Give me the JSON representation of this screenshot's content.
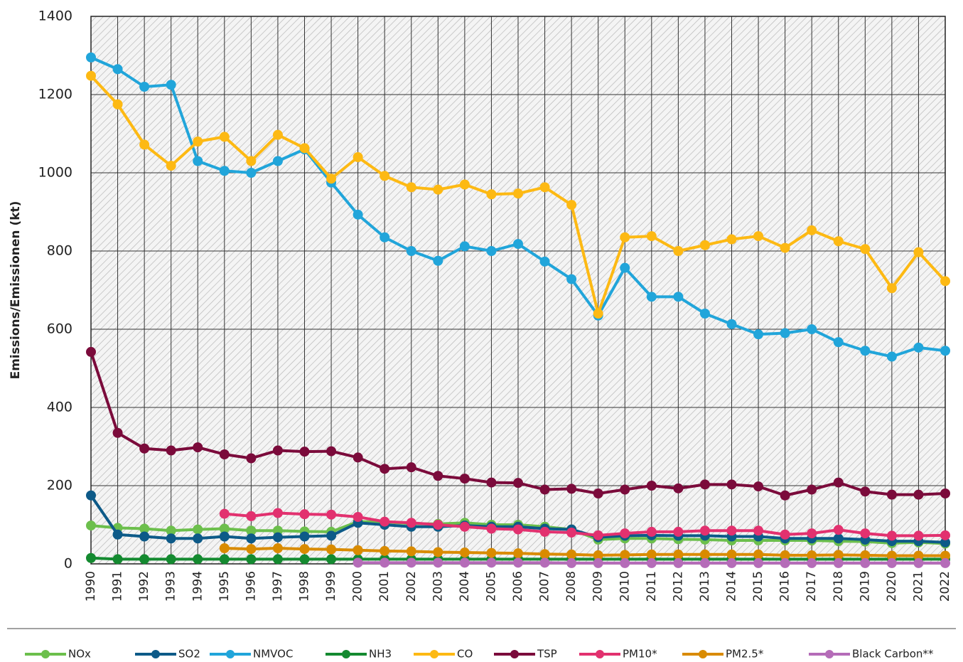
{
  "chart_data": {
    "type": "line",
    "y_label": "Emissions/Emissionen (kt)",
    "categories": [
      "1990",
      "1991",
      "1992",
      "1993",
      "1994",
      "1995",
      "1996",
      "1997",
      "1998",
      "1999",
      "2000",
      "2001",
      "2002",
      "2003",
      "2004",
      "2005",
      "2006",
      "2007",
      "2008",
      "2009",
      "2010",
      "2011",
      "2012",
      "2013",
      "2014",
      "2015",
      "2016",
      "2017",
      "2018",
      "2019",
      "2020",
      "2021",
      "2022"
    ],
    "ylim": [
      0,
      1400
    ],
    "yticks": [
      0,
      200,
      400,
      600,
      800,
      1000,
      1200,
      1400
    ],
    "grid": true,
    "legend": "bottom",
    "series": [
      {
        "name": "NOx",
        "color": "#6cbf4c",
        "values": [
          98,
          92,
          90,
          85,
          88,
          90,
          85,
          85,
          83,
          82,
          108,
          107,
          103,
          102,
          105,
          100,
          100,
          95,
          88,
          62,
          65,
          65,
          63,
          62,
          60,
          60,
          60,
          60,
          58,
          57,
          53,
          55,
          52
        ]
      },
      {
        "name": "SO2",
        "color": "#0d5a88",
        "values": [
          175,
          75,
          70,
          65,
          65,
          70,
          65,
          68,
          70,
          72,
          105,
          100,
          95,
          95,
          98,
          95,
          95,
          90,
          88,
          68,
          72,
          73,
          72,
          72,
          70,
          70,
          65,
          65,
          65,
          62,
          58,
          58,
          55
        ]
      },
      {
        "name": "NMVOC",
        "color": "#21a5da",
        "values": [
          1295,
          1265,
          1220,
          1225,
          1030,
          1005,
          1000,
          1030,
          1060,
          975,
          893,
          835,
          800,
          775,
          812,
          800,
          818,
          773,
          728,
          635,
          757,
          683,
          683,
          640,
          613,
          587,
          590,
          600,
          567,
          545,
          530,
          553,
          545
        ]
      },
      {
        "name": "NH3",
        "color": "#148a30",
        "values": [
          15,
          12,
          12,
          12,
          12,
          12,
          12,
          12,
          12,
          12,
          12,
          12,
          12,
          12,
          12,
          12,
          12,
          12,
          12,
          12,
          12,
          12,
          12,
          12,
          12,
          12,
          12,
          12,
          12,
          12,
          12,
          12,
          12
        ]
      },
      {
        "name": "CO",
        "color": "#fdb913",
        "values": [
          1248,
          1175,
          1072,
          1018,
          1080,
          1092,
          1030,
          1097,
          1063,
          985,
          1040,
          992,
          963,
          957,
          970,
          945,
          947,
          963,
          918,
          640,
          835,
          838,
          800,
          815,
          830,
          838,
          808,
          853,
          825,
          805,
          705,
          797,
          723
        ]
      },
      {
        "name": "TSP",
        "color": "#7b0b3b",
        "values": [
          542,
          335,
          295,
          290,
          298,
          280,
          270,
          290,
          287,
          288,
          272,
          243,
          247,
          225,
          218,
          208,
          207,
          190,
          192,
          180,
          190,
          200,
          193,
          203,
          203,
          198,
          175,
          190,
          208,
          185,
          177,
          177,
          180
        ]
      },
      {
        "name": "PM10*",
        "color": "#e2316f",
        "values": [
          null,
          null,
          null,
          null,
          null,
          128,
          122,
          130,
          127,
          126,
          120,
          108,
          105,
          100,
          95,
          90,
          88,
          82,
          80,
          73,
          78,
          82,
          82,
          85,
          85,
          85,
          75,
          78,
          87,
          78,
          72,
          72,
          73
        ]
      },
      {
        "name": "PM2.5*",
        "color": "#d98b00",
        "values": [
          null,
          null,
          null,
          null,
          null,
          40,
          38,
          40,
          38,
          37,
          35,
          33,
          32,
          30,
          29,
          28,
          27,
          25,
          24,
          22,
          23,
          24,
          24,
          24,
          24,
          24,
          22,
          22,
          23,
          22,
          21,
          21,
          21
        ]
      },
      {
        "name": "Black Carbon**",
        "color": "#b56cb8",
        "values": [
          null,
          null,
          null,
          null,
          null,
          null,
          null,
          null,
          null,
          null,
          3,
          3,
          3,
          3,
          3,
          3,
          3,
          3,
          2,
          2,
          2,
          2,
          2,
          2,
          2,
          2,
          2,
          2,
          2,
          2,
          2,
          2,
          2
        ]
      }
    ]
  }
}
